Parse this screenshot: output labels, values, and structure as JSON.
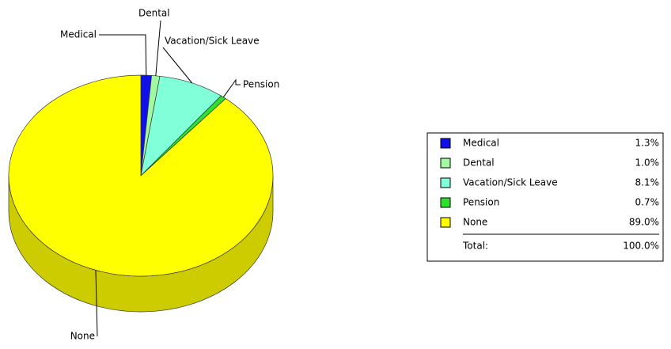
{
  "chart_data": {
    "type": "pie",
    "categories": [
      "Medical",
      "Dental",
      "Vacation/Sick Leave",
      "Pension",
      "None"
    ],
    "values": [
      1.3,
      1.0,
      8.1,
      0.7,
      89.0
    ],
    "value_labels": [
      "1.3%",
      "1.0%",
      "8.1%",
      "0.7%",
      "89.0%"
    ],
    "colors": [
      "#1010e8",
      "#a0f8a0",
      "#80ffd8",
      "#30e030",
      "#ffff00"
    ],
    "total": {
      "label": "Total:",
      "value": 100.0,
      "value_label": "100.0%"
    },
    "legend": "right"
  }
}
